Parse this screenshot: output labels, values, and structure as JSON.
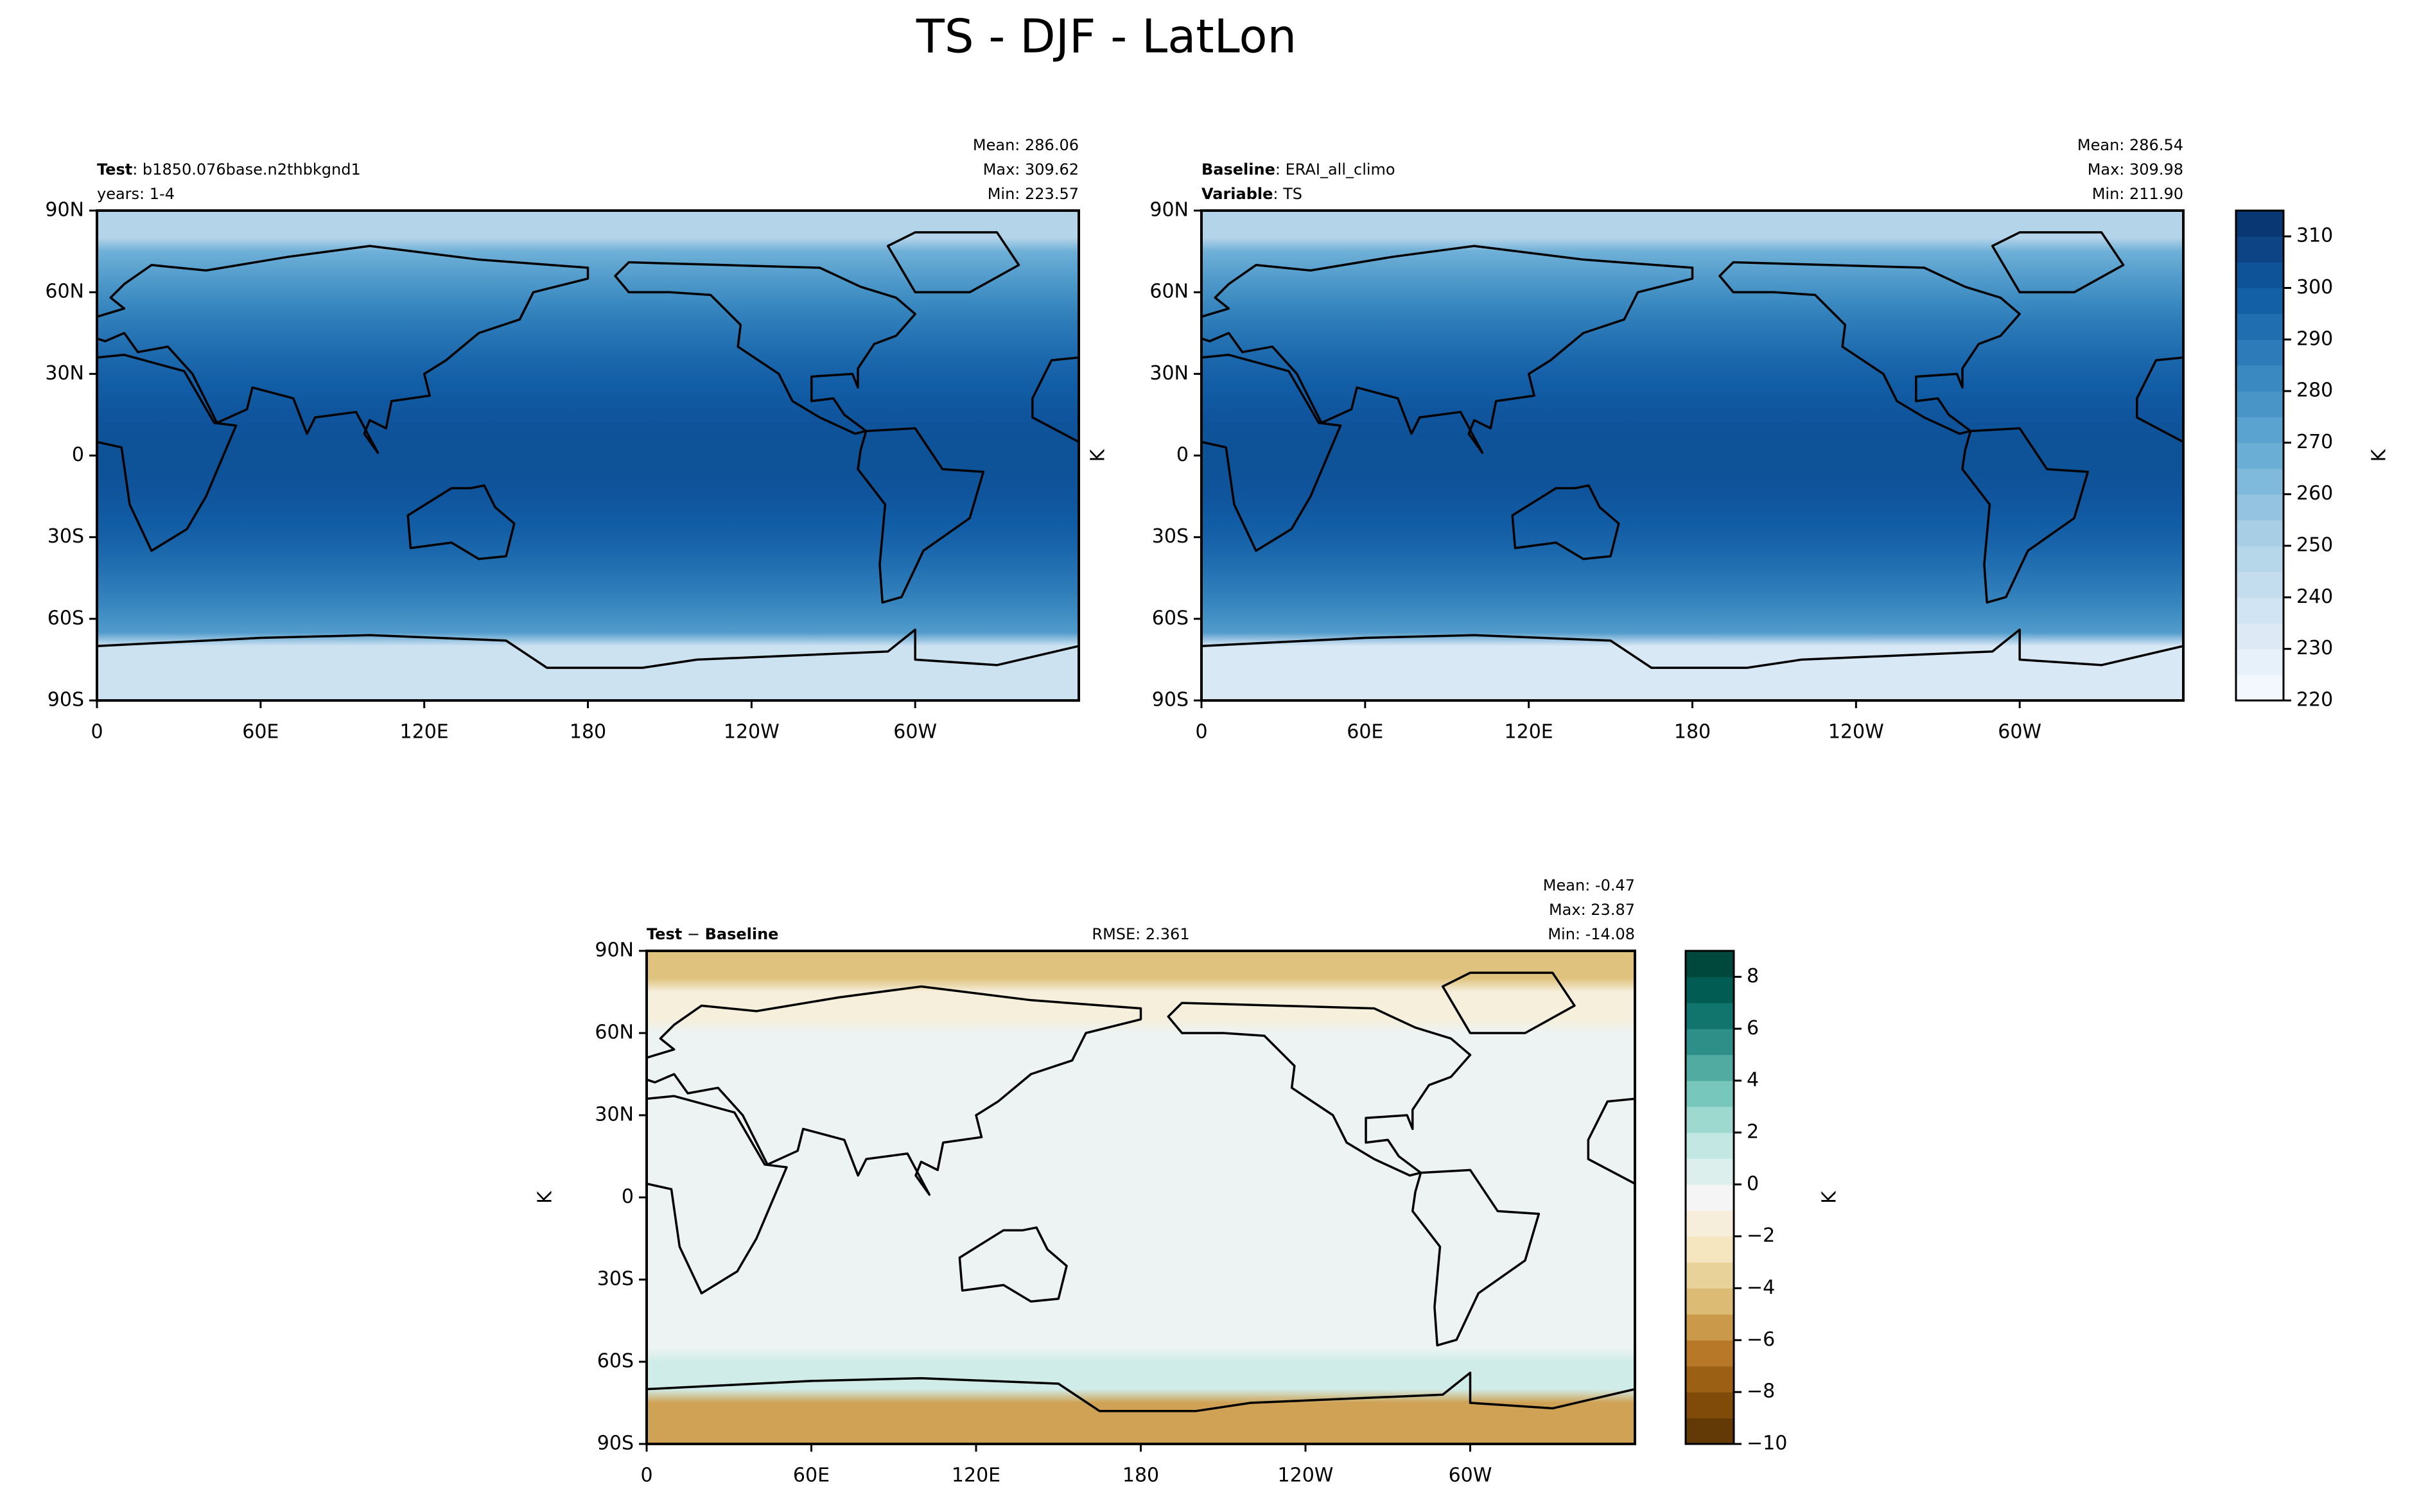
{
  "title": "TS - DJF - LatLon",
  "chart_data": [
    {
      "type": "map",
      "header_lines": [
        [
          {
            "text": "Test",
            "bold": true
          },
          {
            "text": ": b1850.076base.n2thbkgnd1"
          }
        ],
        [
          {
            "text": "years: 1-4"
          }
        ]
      ],
      "stats": [
        "Mean: 286.06",
        "Max: 309.62",
        "Min: 223.57"
      ],
      "xlim": [
        0,
        360
      ],
      "ylim": [
        -90,
        90
      ],
      "xticks": [
        0,
        {
          "value": 60,
          "label": "60E"
        },
        {
          "value": 120,
          "label": "120E"
        },
        180,
        {
          "value": 240,
          "label": "120W"
        },
        {
          "value": 300,
          "label": "60W"
        }
      ],
      "yticks": [
        {
          "value": -90,
          "label": "90S"
        },
        {
          "value": -60,
          "label": "60S"
        },
        {
          "value": -30,
          "label": "30S"
        },
        0,
        {
          "value": 30,
          "label": "30N"
        },
        {
          "value": 60,
          "label": "60N"
        },
        {
          "value": 90,
          "label": "90N"
        }
      ],
      "colors": [
        "#f7fbff",
        "#d6e6f4",
        "#abd0e6",
        "#6aaed6",
        "#3787c0",
        "#105ba4",
        "#08306b"
      ],
      "clim": [
        220,
        315
      ]
    },
    {
      "type": "map",
      "header_lines": [
        [
          {
            "text": "Baseline",
            "bold": true
          },
          {
            "text": ": ERAI_all_climo"
          }
        ],
        [
          {
            "text": "Variable",
            "bold": true
          },
          {
            "text": ": TS"
          }
        ]
      ],
      "stats": [
        "Mean: 286.54",
        "Max: 309.98",
        "Min: 211.90"
      ],
      "ylabel": "K",
      "xlim": [
        0,
        360
      ],
      "ylim": [
        -90,
        90
      ],
      "xticks": [
        0,
        {
          "value": 60,
          "label": "60E"
        },
        {
          "value": 120,
          "label": "120E"
        },
        180,
        {
          "value": 240,
          "label": "120W"
        },
        {
          "value": 300,
          "label": "60W"
        }
      ],
      "yticks": [
        {
          "value": -90,
          "label": "90S"
        },
        {
          "value": -60,
          "label": "60S"
        },
        {
          "value": -30,
          "label": "30S"
        },
        0,
        {
          "value": 30,
          "label": "30N"
        },
        {
          "value": 60,
          "label": "60N"
        },
        {
          "value": 90,
          "label": "90N"
        }
      ],
      "colors": [
        "#f7fbff",
        "#d6e6f4",
        "#abd0e6",
        "#6aaed6",
        "#3787c0",
        "#105ba4",
        "#08306b"
      ],
      "colorbar": {
        "label": "K",
        "lim": [
          220,
          315
        ],
        "ticks": [
          220,
          230,
          240,
          250,
          260,
          270,
          280,
          290,
          300,
          310
        ]
      }
    },
    {
      "type": "map",
      "header_lines": [
        [
          {
            "text": "Test",
            "bold": true
          },
          {
            "text": " − "
          },
          {
            "text": "Baseline",
            "bold": true
          }
        ]
      ],
      "center_text": "RMSE: 2.361",
      "stats": [
        "Mean: -0.47",
        "Max: 23.87",
        "Min: -14.08"
      ],
      "ylabel": "K",
      "xlim": [
        0,
        360
      ],
      "ylim": [
        -90,
        90
      ],
      "xticks": [
        0,
        {
          "value": 60,
          "label": "60E"
        },
        {
          "value": 120,
          "label": "120E"
        },
        180,
        {
          "value": 240,
          "label": "120W"
        },
        {
          "value": 300,
          "label": "60W"
        }
      ],
      "yticks": [
        {
          "value": -90,
          "label": "90S"
        },
        {
          "value": -60,
          "label": "60S"
        },
        {
          "value": -30,
          "label": "30S"
        },
        0,
        {
          "value": 30,
          "label": "30N"
        },
        {
          "value": 60,
          "label": "60N"
        },
        {
          "value": 90,
          "label": "90N"
        }
      ],
      "colors": [
        "#543005",
        "#8c510a",
        "#bf812d",
        "#dfc27d",
        "#f6e8c3",
        "#f5f5f5",
        "#c7eae5",
        "#80cdc1",
        "#35978f",
        "#01665e",
        "#003c30"
      ],
      "colorbar": {
        "label": "K",
        "lim": [
          -10,
          9
        ],
        "ticks": [
          {
            "value": -10,
            "label": "−10"
          },
          {
            "value": -8,
            "label": "−8"
          },
          {
            "value": -6,
            "label": "−6"
          },
          {
            "value": -4,
            "label": "−4"
          },
          {
            "value": -2,
            "label": "−2"
          },
          0,
          2,
          4,
          6,
          8
        ]
      }
    }
  ]
}
